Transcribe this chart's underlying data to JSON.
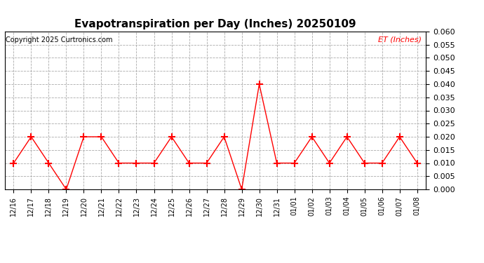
{
  "title": "Evapotranspiration per Day (Inches) 20250109",
  "copyright_text": "Copyright 2025 Curtronics.com",
  "legend_label": "ET (Inches)",
  "legend_color": "red",
  "line_color": "red",
  "marker": "+",
  "marker_size": 7,
  "marker_color": "red",
  "background_color": "white",
  "grid_color": "#aaaaaa",
  "ylim": [
    0.0,
    0.06
  ],
  "ytick_step": 0.005,
  "labels": [
    "12/16",
    "12/17",
    "12/18",
    "12/19",
    "12/20",
    "12/21",
    "12/22",
    "12/23",
    "12/24",
    "12/25",
    "12/26",
    "12/27",
    "12/28",
    "12/29",
    "12/30",
    "12/31",
    "01/01",
    "01/02",
    "01/03",
    "01/04",
    "01/05",
    "01/06",
    "01/07",
    "01/08"
  ],
  "values": [
    0.01,
    0.02,
    0.01,
    0.0,
    0.02,
    0.02,
    0.01,
    0.01,
    0.01,
    0.02,
    0.01,
    0.01,
    0.02,
    0.0,
    0.04,
    0.01,
    0.01,
    0.02,
    0.01,
    0.02,
    0.01,
    0.01,
    0.02,
    0.01
  ]
}
